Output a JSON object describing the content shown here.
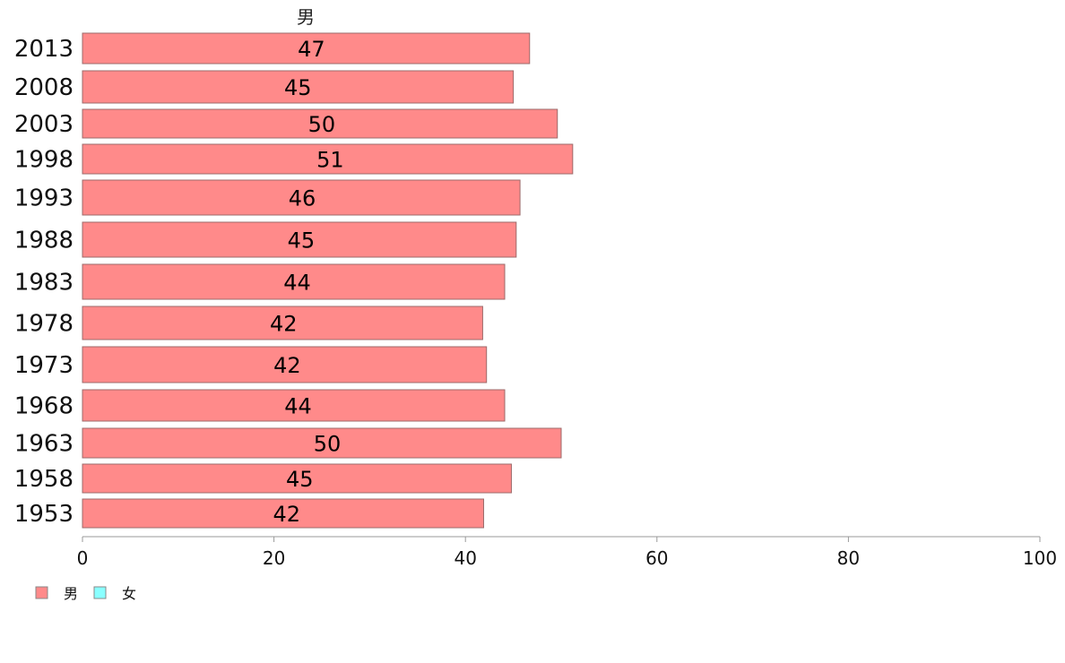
{
  "chart_data": {
    "type": "bar",
    "orientation": "horizontal",
    "title": "男",
    "categories": [
      "2013",
      "2008",
      "2003",
      "1998",
      "1993",
      "1988",
      "1983",
      "1978",
      "1973",
      "1968",
      "1963",
      "1958",
      "1953"
    ],
    "series": [
      {
        "name": "男",
        "color": "#ff8a8a",
        "values": [
          46.7,
          45.0,
          49.6,
          51.2,
          45.7,
          45.3,
          44.1,
          41.8,
          42.2,
          44.1,
          50.0,
          44.8,
          41.9
        ],
        "labels": [
          "47",
          "45",
          "50",
          "51",
          "46",
          "45",
          "44",
          "42",
          "42",
          "44",
          "50",
          "45",
          "42"
        ]
      }
    ],
    "xlim": [
      0,
      100
    ],
    "xticks": [
      "0",
      "20",
      "40",
      "60",
      "80",
      "100"
    ],
    "grid": false,
    "legend": {
      "position": "bottom-left",
      "entries": [
        {
          "label": "男",
          "color": "#ff8a8a"
        },
        {
          "label": "女",
          "color": "#8affff"
        }
      ]
    }
  }
}
